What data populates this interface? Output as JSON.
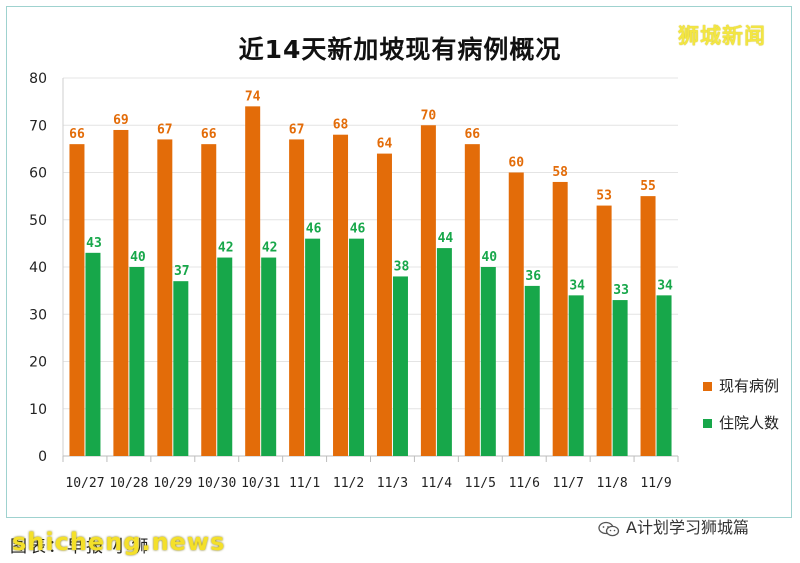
{
  "header": {
    "logo_text": "狮城新闻"
  },
  "footer": {
    "source_text": "图表：早报 小狮",
    "watermark": "shicheng.news",
    "wechat_account": "A计划学习狮城篇",
    "wechat_icon": "wechat-icon"
  },
  "colors": {
    "orange": "#e36c09",
    "green": "#17a74a"
  },
  "chart_data": {
    "type": "bar",
    "title": "近14天新加坡现有病例概况",
    "xlabel": "",
    "ylabel": "",
    "categories": [
      "10/27",
      "10/28",
      "10/29",
      "10/30",
      "10/31",
      "11/1",
      "11/2",
      "11/3",
      "11/4",
      "11/5",
      "11/6",
      "11/7",
      "11/8",
      "11/9"
    ],
    "series": [
      {
        "name": "现有病例",
        "color": "#e36c09",
        "values": [
          66,
          69,
          67,
          66,
          74,
          67,
          68,
          64,
          70,
          66,
          60,
          58,
          53,
          55
        ]
      },
      {
        "name": "住院人数",
        "color": "#17a74a",
        "values": [
          43,
          40,
          37,
          42,
          42,
          46,
          46,
          38,
          44,
          40,
          36,
          34,
          33,
          34
        ]
      }
    ],
    "ylim": [
      0,
      80
    ],
    "yticks": [
      0,
      10,
      20,
      30,
      40,
      50,
      60,
      70,
      80
    ],
    "grid": true,
    "legend_position": "right"
  }
}
